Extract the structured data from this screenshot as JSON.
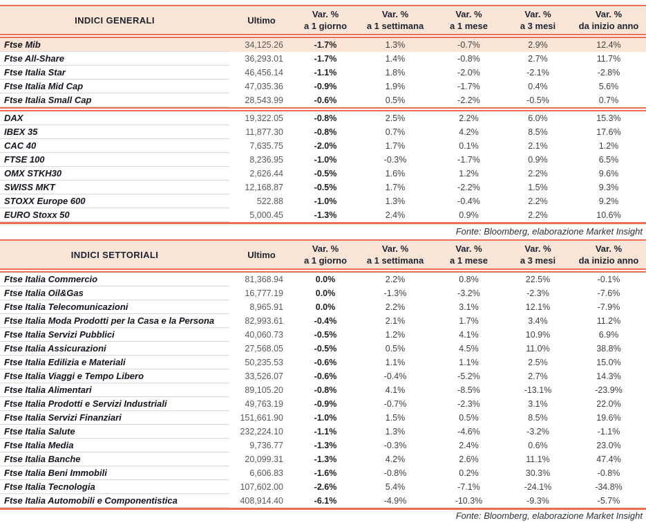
{
  "colors": {
    "accent": "#ec6d53",
    "header_bg": "#fbe5d6",
    "highlight_bg": "#fbe5d6"
  },
  "source_note": "Fonte: Bloomberg, elaborazione Market Insight",
  "tables": [
    {
      "title": "INDICI GENERALI",
      "columns": {
        "ultimo": "Ultimo",
        "var_label": "Var. %",
        "periods": [
          "a 1 giorno",
          "a 1 settimana",
          "a 1 mese",
          "a 3 mesi",
          "da inizio anno"
        ]
      },
      "section_break_after": 4,
      "fonte": "Fonte: Bloomberg, elaborazione Market Insight",
      "rows": [
        {
          "name": "Ftse Mib",
          "ultimo": "34,125.26",
          "vars": [
            "-1.7%",
            "1.3%",
            "-0.7%",
            "2.9%",
            "12.4%"
          ],
          "highlight": true
        },
        {
          "name": "Ftse All-Share",
          "ultimo": "36,293.01",
          "vars": [
            "-1.7%",
            "1.4%",
            "-0.8%",
            "2.7%",
            "11.7%"
          ]
        },
        {
          "name": "Ftse Italia Star",
          "ultimo": "46,456.14",
          "vars": [
            "-1.1%",
            "1.8%",
            "-2.0%",
            "-2.1%",
            "-2.8%"
          ]
        },
        {
          "name": "Ftse Italia Mid Cap",
          "ultimo": "47,035.36",
          "vars": [
            "-0.9%",
            "1.9%",
            "-1.7%",
            "0.4%",
            "5.6%"
          ]
        },
        {
          "name": "Ftse Italia Small Cap",
          "ultimo": "28,543.99",
          "vars": [
            "-0.6%",
            "0.5%",
            "-2.2%",
            "-0.5%",
            "0.7%"
          ]
        },
        {
          "name": "DAX",
          "ultimo": "19,322.05",
          "vars": [
            "-0.8%",
            "2.5%",
            "2.2%",
            "6.0%",
            "15.3%"
          ]
        },
        {
          "name": "IBEX 35",
          "ultimo": "11,877.30",
          "vars": [
            "-0.8%",
            "0.7%",
            "4.2%",
            "8.5%",
            "17.6%"
          ]
        },
        {
          "name": "CAC 40",
          "ultimo": "7,635.75",
          "vars": [
            "-2.0%",
            "1.7%",
            "0.1%",
            "2.1%",
            "1.2%"
          ]
        },
        {
          "name": "FTSE 100",
          "ultimo": "8,236.95",
          "vars": [
            "-1.0%",
            "-0.3%",
            "-1.7%",
            "0.9%",
            "6.5%"
          ]
        },
        {
          "name": "OMX STKH30",
          "ultimo": "2,626.44",
          "vars": [
            "-0.5%",
            "1.6%",
            "1.2%",
            "2.2%",
            "9.6%"
          ]
        },
        {
          "name": "SWISS MKT",
          "ultimo": "12,168.87",
          "vars": [
            "-0.5%",
            "1.7%",
            "-2.2%",
            "1.5%",
            "9.3%"
          ]
        },
        {
          "name": "STOXX Europe 600",
          "ultimo": "522.88",
          "vars": [
            "-1.0%",
            "1.3%",
            "-0.4%",
            "2.2%",
            "9.2%"
          ]
        },
        {
          "name": "EURO Stoxx 50",
          "ultimo": "5,000.45",
          "vars": [
            "-1.3%",
            "2.4%",
            "0.9%",
            "2.2%",
            "10.6%"
          ]
        }
      ]
    },
    {
      "title": "INDICI SETTORIALI",
      "columns": {
        "ultimo": "Ultimo",
        "var_label": "Var. %",
        "periods": [
          "a 1 giorno",
          "a 1 settimana",
          "a 1 mese",
          "a 3 mesi",
          "da inizio anno"
        ]
      },
      "section_break_after": null,
      "fonte": "Fonte: Bloomberg, elaborazione Market Insight",
      "rows": [
        {
          "name": "Ftse Italia Commercio",
          "ultimo": "81,368.94",
          "vars": [
            "0.0%",
            "2.2%",
            "0.8%",
            "22.5%",
            "-0.1%"
          ]
        },
        {
          "name": "Ftse Italia Oil&Gas",
          "ultimo": "16,777.19",
          "vars": [
            "0.0%",
            "-1.3%",
            "-3.2%",
            "-2.3%",
            "-7.6%"
          ]
        },
        {
          "name": "Ftse Italia Telecomunicazioni",
          "ultimo": "8,965.91",
          "vars": [
            "0.0%",
            "2.2%",
            "3.1%",
            "12.1%",
            "-7.9%"
          ]
        },
        {
          "name": "Ftse Italia Moda Prodotti per la Casa e la Persona",
          "ultimo": "82,993.61",
          "vars": [
            "-0.4%",
            "2.1%",
            "1.7%",
            "3.4%",
            "11.2%"
          ]
        },
        {
          "name": "Ftse Italia Servizi Pubblici",
          "ultimo": "40,060.73",
          "vars": [
            "-0.5%",
            "1.2%",
            "4.1%",
            "10.9%",
            "6.9%"
          ]
        },
        {
          "name": "Ftse Italia Assicurazioni",
          "ultimo": "27,568.05",
          "vars": [
            "-0.5%",
            "0.5%",
            "4.5%",
            "11.0%",
            "38.8%"
          ]
        },
        {
          "name": "Ftse Italia Edilizia e Materiali",
          "ultimo": "50,235.53",
          "vars": [
            "-0.6%",
            "1.1%",
            "1.1%",
            "2.5%",
            "15.0%"
          ]
        },
        {
          "name": "Ftse Italia Viaggi e Tempo Libero",
          "ultimo": "33,526.07",
          "vars": [
            "-0.6%",
            "-0.4%",
            "-5.2%",
            "2.7%",
            "14.3%"
          ]
        },
        {
          "name": "Ftse Italia Alimentari",
          "ultimo": "89,105.20",
          "vars": [
            "-0.8%",
            "4.1%",
            "-8.5%",
            "-13.1%",
            "-23.9%"
          ]
        },
        {
          "name": "Ftse Italia Prodotti e Servizi Industriali",
          "ultimo": "49,763.19",
          "vars": [
            "-0.9%",
            "-0.7%",
            "-2.3%",
            "3.1%",
            "22.0%"
          ]
        },
        {
          "name": "Ftse Italia Servizi Finanziari",
          "ultimo": "151,661.90",
          "vars": [
            "-1.0%",
            "1.5%",
            "0.5%",
            "8.5%",
            "19.6%"
          ]
        },
        {
          "name": "Ftse Italia Salute",
          "ultimo": "232,224.10",
          "vars": [
            "-1.1%",
            "1.3%",
            "-4.6%",
            "-3.2%",
            "-1.1%"
          ]
        },
        {
          "name": "Ftse Italia Media",
          "ultimo": "9,736.77",
          "vars": [
            "-1.3%",
            "-0.3%",
            "2.4%",
            "0.6%",
            "23.0%"
          ]
        },
        {
          "name": "Ftse Italia Banche",
          "ultimo": "20,099.31",
          "vars": [
            "-1.3%",
            "4.2%",
            "2.6%",
            "11.1%",
            "47.4%"
          ]
        },
        {
          "name": "Ftse Italia Beni Immobili",
          "ultimo": "6,606.83",
          "vars": [
            "-1.6%",
            "-0.8%",
            "0.2%",
            "30.3%",
            "-0.8%"
          ]
        },
        {
          "name": "Ftse Italia Tecnologia",
          "ultimo": "107,602.00",
          "vars": [
            "-2.6%",
            "5.4%",
            "-7.1%",
            "-24.1%",
            "-34.8%"
          ]
        },
        {
          "name": "Ftse Italia Automobili e Componentistica",
          "ultimo": "408,914.40",
          "vars": [
            "-6.1%",
            "-4.9%",
            "-10.3%",
            "-9.3%",
            "-5.7%"
          ]
        }
      ]
    }
  ]
}
